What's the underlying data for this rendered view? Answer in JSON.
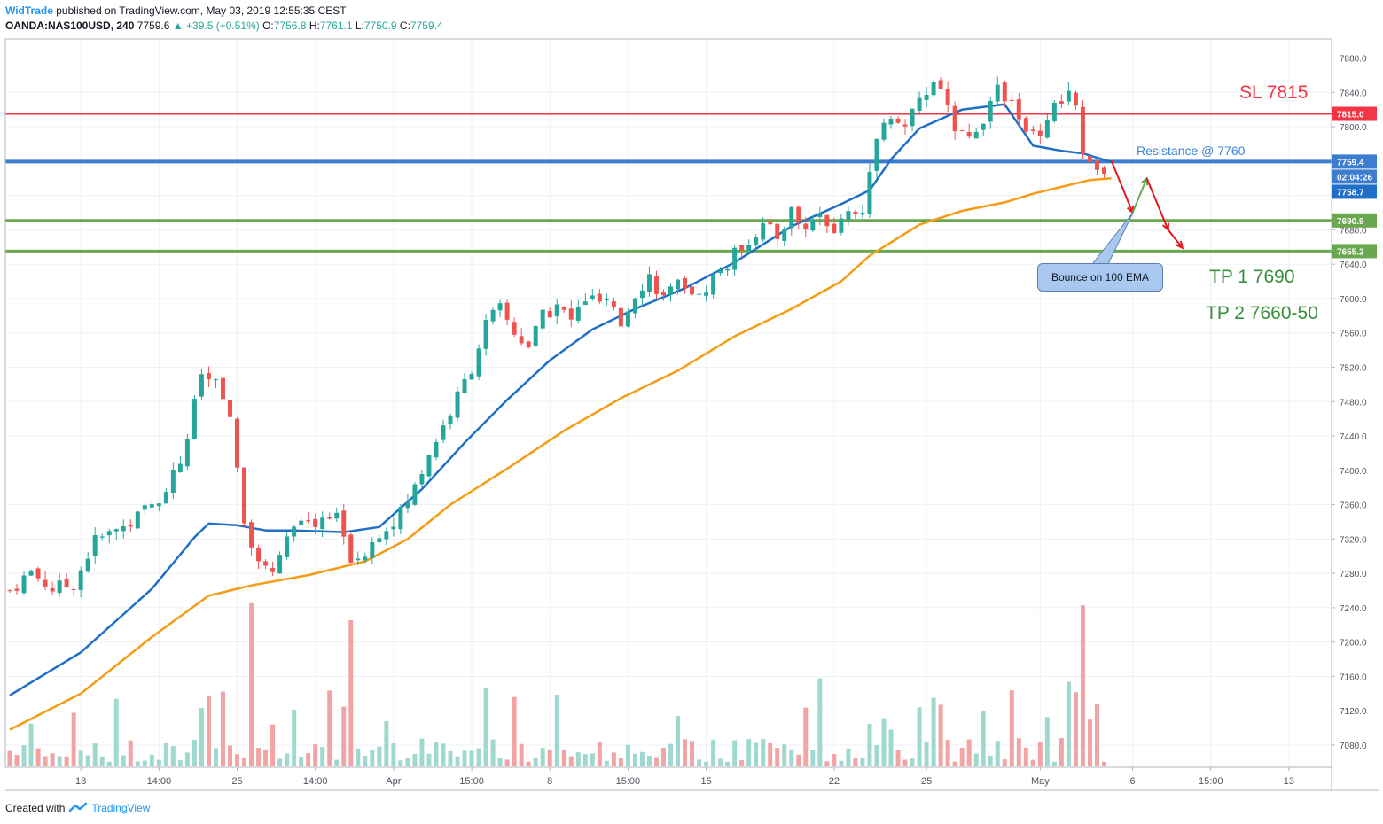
{
  "header": {
    "author": "WidTrade",
    "published": "published on TradingView.com, May 03, 2019 12:55:35 CEST",
    "symbol": "OANDA:NAS100USD, 240",
    "last": "7759.6",
    "arrow": "▲",
    "change": "+39.5 (+0.51%)",
    "o_label": "O:",
    "o_val": "7756.8",
    "h_label": "H:",
    "h_val": "7761.1",
    "l_label": "L:",
    "l_val": "7750.9",
    "c_label": "C:",
    "c_val": "7759.4"
  },
  "footer": {
    "created": "Created with",
    "brand": "TradingView"
  },
  "annotations": {
    "sl": "SL 7815",
    "resistance": "Resistance @ 7760",
    "tp1": "TP 1 7690",
    "tp2": "TP 2 7660-50",
    "callout": "Bounce on 100 EMA"
  },
  "colors": {
    "up": "#26a69a",
    "down": "#ef5350",
    "ema_fast": "#1f6fc8",
    "ema_slow": "#f59b14",
    "sl_line": "#f23645",
    "resistance_line": "#3d7dd0",
    "tp_line": "#6aa84f",
    "grid": "#eef1f5"
  },
  "chart_data": {
    "type": "candlestick",
    "symbol": "OANDA:NAS100USD",
    "timeframe": "240",
    "y_ticks": [
      7080,
      7120,
      7160,
      7200,
      7240,
      7280,
      7320,
      7360,
      7400,
      7440,
      7480,
      7520,
      7560,
      7600,
      7640,
      7680,
      7720,
      7760,
      7800,
      7840,
      7880
    ],
    "y_tick_labels": [
      "7080.0",
      "7120.0",
      "7160.0",
      "7200.0",
      "7240.0",
      "7280.0",
      "7320.0",
      "7360.0",
      "7400.0",
      "7440.0",
      "7480.0",
      "7520.0",
      "7560.0",
      "7600.0",
      "7640.0",
      "7680.0",
      "7720.0",
      "7760.0",
      "7800.0",
      "7840.0",
      "7880.0"
    ],
    "ylim": [
      7060,
      7900
    ],
    "x_tick_labels": [
      "18",
      "14:00",
      "25",
      "14:00",
      "Apr",
      "15:00",
      "8",
      "15:00",
      "15",
      "22",
      "25",
      "May",
      "6",
      "15:00",
      "13"
    ],
    "x_tick_index": [
      10,
      21,
      32,
      43,
      54,
      65,
      76,
      87,
      98,
      116,
      129,
      145,
      158,
      169,
      180
    ],
    "bars_shown": 155,
    "x_range_index": [
      0,
      186
    ],
    "price_labels": [
      {
        "value": 7815.0,
        "text": "7815.0",
        "color": "#f23645"
      },
      {
        "value": 7759.4,
        "text": "7759.4",
        "color": "#3d7dd0"
      },
      {
        "value": 7742.0,
        "text": "02:04:26",
        "color": "#3d7dd0"
      },
      {
        "value": 7758.7,
        "text": "7758.7",
        "color": "#1f6fc8"
      },
      {
        "value": 7690.9,
        "text": "7690.9",
        "color": "#6aa84f"
      },
      {
        "value": 7655.2,
        "text": "7655.2",
        "color": "#6aa84f"
      }
    ],
    "horizontal_lines": [
      {
        "value": 7815,
        "color": "#f23645",
        "width": 2
      },
      {
        "value": 7759.4,
        "color": "#3d7dd0",
        "width": 4
      },
      {
        "value": 7690.9,
        "color": "#6aa84f",
        "width": 3
      },
      {
        "value": 7655.2,
        "color": "#6aa84f",
        "width": 3
      }
    ],
    "ema_fast": [
      [
        0,
        7138
      ],
      [
        10,
        7188
      ],
      [
        20,
        7262
      ],
      [
        26,
        7322
      ],
      [
        28,
        7338
      ],
      [
        32,
        7336
      ],
      [
        36,
        7330
      ],
      [
        40,
        7330
      ],
      [
        47,
        7328
      ],
      [
        52,
        7334
      ],
      [
        58,
        7378
      ],
      [
        64,
        7432
      ],
      [
        70,
        7482
      ],
      [
        76,
        7528
      ],
      [
        82,
        7564
      ],
      [
        88,
        7588
      ],
      [
        95,
        7612
      ],
      [
        102,
        7642
      ],
      [
        110,
        7684
      ],
      [
        117,
        7710
      ],
      [
        121,
        7726
      ],
      [
        124,
        7762
      ],
      [
        128,
        7798
      ],
      [
        134,
        7820
      ],
      [
        140,
        7826
      ],
      [
        144,
        7778
      ],
      [
        148,
        7772
      ],
      [
        151,
        7769
      ],
      [
        155,
        7759
      ]
    ],
    "ema_slow": [
      [
        0,
        7098
      ],
      [
        10,
        7140
      ],
      [
        20,
        7206
      ],
      [
        28,
        7254
      ],
      [
        34,
        7266
      ],
      [
        42,
        7278
      ],
      [
        50,
        7294
      ],
      [
        56,
        7320
      ],
      [
        62,
        7360
      ],
      [
        70,
        7402
      ],
      [
        78,
        7446
      ],
      [
        86,
        7484
      ],
      [
        94,
        7516
      ],
      [
        102,
        7556
      ],
      [
        110,
        7588
      ],
      [
        117,
        7620
      ],
      [
        121,
        7650
      ],
      [
        128,
        7686
      ],
      [
        134,
        7702
      ],
      [
        140,
        7712
      ],
      [
        144,
        7722
      ],
      [
        148,
        7730
      ],
      [
        152,
        7738
      ],
      [
        155,
        7740
      ]
    ],
    "projection": [
      {
        "from": [
          155,
          7761
        ],
        "to": [
          158,
          7700
        ],
        "color": "#e8141c"
      },
      {
        "from": [
          158,
          7700
        ],
        "to": [
          160,
          7740
        ],
        "color": "#6aa84f"
      },
      {
        "from": [
          160,
          7740
        ],
        "to": [
          163,
          7680
        ],
        "color": "#e8141c"
      },
      {
        "from": [
          163,
          7680
        ],
        "to": [
          165,
          7659
        ],
        "color": "#e8141c"
      }
    ]
  }
}
